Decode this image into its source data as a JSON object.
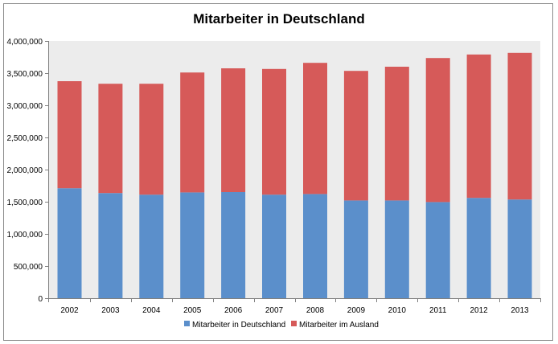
{
  "colors": {
    "series_deutschland": "#5b8fcb",
    "series_ausland": "#d65a59",
    "plot_background": "#ececec",
    "axis": "#808080"
  },
  "chart_data": {
    "type": "bar",
    "stacked": true,
    "title": "Mitarbeiter in Deutschland",
    "xlabel": "",
    "ylabel": "",
    "categories": [
      "2002",
      "2003",
      "2004",
      "2005",
      "2006",
      "2007",
      "2008",
      "2009",
      "2010",
      "2011",
      "2012",
      "2013"
    ],
    "series": [
      {
        "name": "Mitarbeiter in Deutschland",
        "color": "#5b8fcb",
        "values": [
          1710000,
          1635000,
          1610000,
          1645000,
          1650000,
          1610000,
          1620000,
          1520000,
          1520000,
          1495000,
          1560000,
          1535000
        ]
      },
      {
        "name": "Mitarbeiter im Ausland",
        "color": "#d65a59",
        "values": [
          1665000,
          1700000,
          1725000,
          1865000,
          1925000,
          1955000,
          2040000,
          2015000,
          2080000,
          2240000,
          2230000,
          2280000
        ]
      }
    ],
    "ylim": [
      0,
      4000000
    ],
    "y_ticks": [
      0,
      500000,
      1000000,
      1500000,
      2000000,
      2500000,
      3000000,
      3500000,
      4000000
    ],
    "y_tick_labels": [
      "0",
      "500,000",
      "1,000,000",
      "1,500,000",
      "2,000,000",
      "2,500,000",
      "3,000,000",
      "3,500,000",
      "4,000,000"
    ],
    "grid": false,
    "legend_position": "bottom"
  }
}
